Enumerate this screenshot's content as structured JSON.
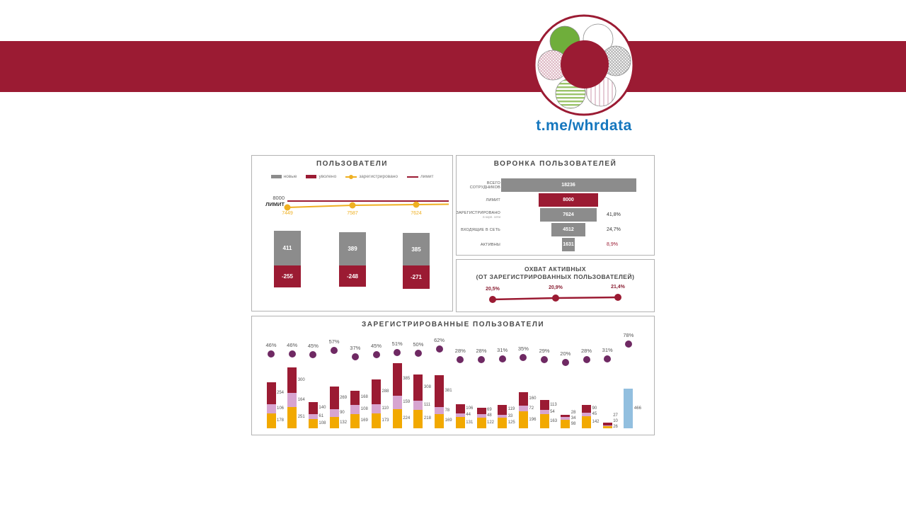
{
  "palette": {
    "maroon": "#9B1B33",
    "gray": "#8C8C8C",
    "orange": "#F2A900",
    "lilac": "#D7A4D0",
    "purple": "#6F2963",
    "blue": "#92BFDF",
    "yellow": "#EFB022",
    "link_blue": "#1577BE",
    "title_text": "#4a4a4a"
  },
  "header": {
    "telegram_handle": "t.me/whrdata"
  },
  "logo": {
    "center": "maroon-circle",
    "petals": [
      "green-solid",
      "white-outline",
      "gray-crosshatch",
      "pink-vertical-stripes",
      "green-horizontal-stripes",
      "pink-crosshatch"
    ]
  },
  "chart_data": [
    {
      "id": "users",
      "type": "bar",
      "title": "ПОЛЬЗОВАТЕЛИ",
      "legend": [
        {
          "label": "новые",
          "swatch": "gray-box"
        },
        {
          "label": "уволено",
          "swatch": "maroon-box"
        },
        {
          "label": "зарегистрировано",
          "swatch": "yellow-line-dot"
        },
        {
          "label": "лимит",
          "swatch": "maroon-line"
        }
      ],
      "limit": {
        "value": "8000",
        "label": "ЛИМИТ"
      },
      "series": [
        {
          "name": "новые",
          "color": "gray",
          "values": [
            411,
            389,
            385
          ]
        },
        {
          "name": "уволено",
          "color": "maroon",
          "values": [
            -255,
            -248,
            -271
          ]
        },
        {
          "name": "зарегистрировано",
          "color": "yellow",
          "values": [
            7449,
            7587,
            7624
          ]
        },
        {
          "name": "лимит",
          "color": "maroon",
          "values": [
            8000,
            8000,
            8000
          ]
        }
      ]
    },
    {
      "id": "funnel",
      "type": "funnel",
      "title": "ВОРОНКА ПОЛЬЗОВАТЕЛЕЙ",
      "max": 18236,
      "rows": [
        {
          "label": "ВСЕГО СОТРУДНИКОВ",
          "sublabel": "",
          "value": 18236,
          "pct": "",
          "color": "gray"
        },
        {
          "label": "ЛИМИТ",
          "sublabel": "",
          "value": 8000,
          "pct": "",
          "color": "maroon"
        },
        {
          "label": "ЗАРЕГИСТРИРОВАНО",
          "sublabel": "в корп. сети",
          "value": 7624,
          "pct": "41,8%",
          "color": "gray",
          "pct_red": false
        },
        {
          "label": "ВХОДЯЩИЕ В СЕТЬ",
          "sublabel": "",
          "value": 4512,
          "pct": "24,7%",
          "color": "gray",
          "pct_red": false
        },
        {
          "label": "АКТИВНЫ",
          "sublabel": "",
          "value": 1631,
          "pct": "8,9%",
          "color": "gray",
          "pct_red": true
        }
      ]
    },
    {
      "id": "coverage",
      "type": "line",
      "title": "ОХВАТ АКТИВНЫХ",
      "subtitle": "(ОТ ЗАРЕГИСТРИРОВАННЫХ ПОЛЬЗОВАТЕЛЕЙ)",
      "points": [
        {
          "label": "20,5%",
          "value": 20.5
        },
        {
          "label": "20,9%",
          "value": 20.9
        },
        {
          "label": "21,4%",
          "value": 21.4
        }
      ]
    },
    {
      "id": "registered",
      "type": "stacked-bar",
      "title": "ЗАРЕГИСТРИРОВАННЫЕ ПОЛЬЗОВАТЕЛИ",
      "segment_order": [
        "orange",
        "lilac",
        "maroon"
      ],
      "bars": [
        {
          "pct": 46,
          "segments": [
            178,
            106,
            254
          ]
        },
        {
          "pct": 46,
          "segments": [
            251,
            164,
            300
          ]
        },
        {
          "pct": 45,
          "segments": [
            108,
            61,
            140
          ]
        },
        {
          "pct": 57,
          "segments": [
            132,
            90,
            269
          ]
        },
        {
          "pct": 37,
          "segments": [
            169,
            108,
            168
          ]
        },
        {
          "pct": 45,
          "segments": [
            173,
            110,
            288
          ]
        },
        {
          "pct": 51,
          "segments": [
            224,
            159,
            385
          ]
        },
        {
          "pct": 50,
          "segments": [
            218,
            111,
            308
          ]
        },
        {
          "pct": 62,
          "segments": [
            169,
            78,
            381
          ]
        },
        {
          "pct": 28,
          "segments": [
            131,
            44,
            106
          ]
        },
        {
          "pct": 28,
          "segments": [
            122,
            48,
            69
          ]
        },
        {
          "pct": 31,
          "segments": [
            125,
            33,
            119
          ]
        },
        {
          "pct": 35,
          "segments": [
            196,
            72,
            160
          ]
        },
        {
          "pct": 29,
          "segments": [
            163,
            54,
            113
          ]
        },
        {
          "pct": 20,
          "segments": [
            98,
            34,
            28
          ]
        },
        {
          "pct": 28,
          "segments": [
            142,
            45,
            90
          ]
        },
        {
          "pct": 31,
          "segments": [
            26,
            10,
            27
          ]
        },
        {
          "pct": 78,
          "segments": [
            466
          ],
          "single_color": "blue"
        }
      ]
    }
  ]
}
